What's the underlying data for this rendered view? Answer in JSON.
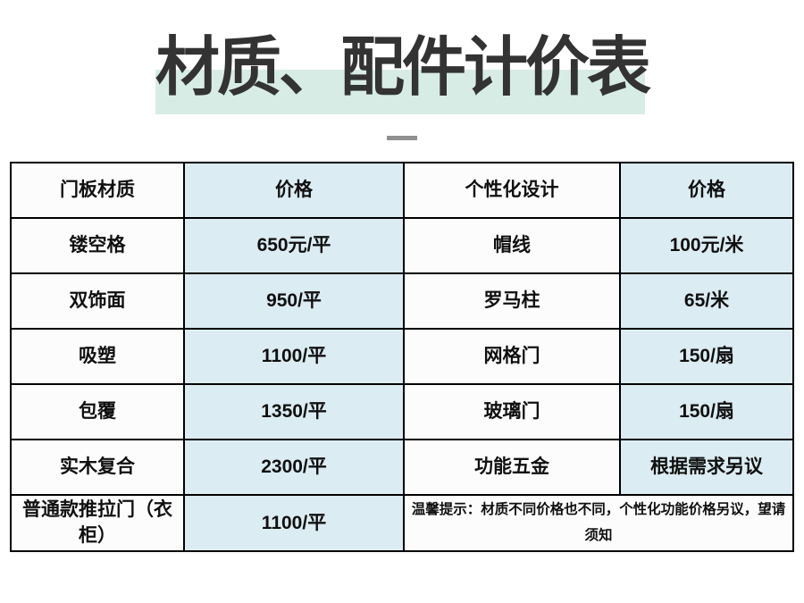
{
  "title": {
    "text": "材质、配件计价表",
    "highlight_color": "#d8ece6"
  },
  "colors": {
    "accent_cell_blue": "#dbecf2",
    "table_border": "#000000",
    "title_text": "#333333",
    "divider_gray": "#8f8f8f"
  },
  "table": {
    "columns": [
      "门板材质",
      "价格",
      "个性化设计",
      "价格"
    ],
    "rows": [
      [
        "镂空格",
        "650元/平",
        "帽线",
        "100元/米"
      ],
      [
        "双饰面",
        "950/平",
        "罗马柱",
        "65/米"
      ],
      [
        "吸塑",
        "1100/平",
        "网格门",
        "150/扇"
      ],
      [
        "包覆",
        "1350/平",
        "玻璃门",
        "150/扇"
      ],
      [
        "实木复合",
        "2300/平",
        "功能五金",
        "根据需求另议"
      ],
      [
        "普通款推拉门（衣柜）",
        "1100/平"
      ]
    ],
    "tip_note": "温馨提示：材质不同价格也不同，个性化功能价格另议，望请须知"
  }
}
